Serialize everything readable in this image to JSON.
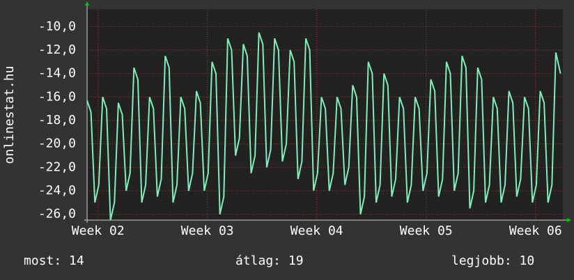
{
  "chart_data": {
    "type": "line",
    "y_label": "onlinestat.hu",
    "x": [
      0,
      0.25,
      0.5,
      0.75,
      1,
      1.25,
      1.5,
      1.75,
      2,
      2.25,
      2.5,
      2.75,
      3,
      3.25,
      3.5,
      3.75,
      4,
      4.25,
      4.5,
      4.75,
      5,
      5.25,
      5.5,
      5.75,
      6,
      6.25,
      6.5,
      6.75,
      7,
      7.25,
      7.5,
      7.75,
      8,
      8.25,
      8.5,
      8.75,
      9,
      9.25,
      9.5,
      9.75,
      10,
      10.25,
      10.5,
      10.75,
      11,
      11.25,
      11.5,
      11.75,
      12,
      12.25,
      12.5,
      12.75,
      13,
      13.25,
      13.5,
      13.75,
      14,
      14.25,
      14.5,
      14.75,
      15,
      15.25,
      15.5,
      15.75,
      16,
      16.25,
      16.5,
      16.75,
      17,
      17.25,
      17.5,
      17.75,
      18,
      18.25,
      18.5,
      18.75,
      19,
      19.25,
      19.5,
      19.75,
      20,
      20.25,
      20.5,
      20.75,
      21,
      21.25,
      21.5,
      21.75,
      22,
      22.25,
      22.5,
      22.75,
      23,
      23.25,
      23.5,
      23.75,
      24,
      24.25,
      24.5,
      24.75,
      25,
      25.25,
      25.5,
      25.75,
      26,
      26.25,
      26.5,
      26.75,
      27,
      27.25,
      27.5,
      27.75,
      28,
      28.25,
      28.5,
      28.75,
      29,
      29.25,
      29.5,
      29.75,
      30,
      30.3
    ],
    "series": [
      {
        "color": "#80eeb8",
        "values": [
          -16.3,
          -17.3,
          -25,
          -23.5,
          -16,
          -17,
          -26.5,
          -25,
          -16.5,
          -17.5,
          -24,
          -22.5,
          -13.5,
          -14.5,
          -25,
          -23.5,
          -16,
          -17,
          -24.5,
          -23,
          -12.5,
          -13.5,
          -25,
          -23.5,
          -16,
          -17,
          -24,
          -22.5,
          -15.5,
          -16.5,
          -24,
          -22.5,
          -13,
          -14,
          -26,
          -24.5,
          -11,
          -12,
          -21,
          -19.5,
          -11.5,
          -12.5,
          -22.5,
          -21,
          -10.5,
          -11.5,
          -22,
          -20.5,
          -11,
          -12,
          -21.5,
          -20,
          -12,
          -13,
          -23,
          -21.5,
          -11,
          -12,
          -24,
          -22.5,
          -16,
          -17,
          -24,
          -22.5,
          -16,
          -17,
          -23.5,
          -22,
          -15,
          -16,
          -26,
          -24.5,
          -13,
          -14,
          -25,
          -23.5,
          -14,
          -15,
          -24.5,
          -23,
          -16,
          -17,
          -25,
          -23.5,
          -16,
          -17,
          -24,
          -22.5,
          -14.5,
          -15.5,
          -24.5,
          -23,
          -13,
          -14,
          -24,
          -22.5,
          -12.5,
          -13.5,
          -25.5,
          -24,
          -13.5,
          -14.5,
          -25,
          -23.5,
          -16,
          -17,
          -25,
          -23.5,
          -15.5,
          -16.5,
          -24.5,
          -23,
          -16,
          -17,
          -25,
          -23.5,
          -15.5,
          -16.5,
          -25,
          -23.5,
          -12.2,
          -14
        ]
      }
    ],
    "xlim": [
      0,
      30.45
    ],
    "xticks": [
      {
        "value": 0.7,
        "label": "Week 02"
      },
      {
        "value": 7.7,
        "label": "Week 03"
      },
      {
        "value": 14.7,
        "label": "Week 04"
      },
      {
        "value": 21.7,
        "label": "Week 05"
      },
      {
        "value": 28.7,
        "label": "Week 06"
      }
    ],
    "ylim": [
      -26.5,
      -8.5
    ],
    "yticks": [
      {
        "value": -26,
        "label": "-26,0"
      },
      {
        "value": -24,
        "label": "-24,0"
      },
      {
        "value": -22,
        "label": "-22,0"
      },
      {
        "value": -20,
        "label": "-20,0"
      },
      {
        "value": -18,
        "label": "-18,0"
      },
      {
        "value": -16,
        "label": "-16,0"
      },
      {
        "value": -14,
        "label": "-14,0"
      },
      {
        "value": -12,
        "label": "-12,0"
      },
      {
        "value": -10,
        "label": "-10,0"
      }
    ],
    "grid": true,
    "footer": [
      "most: 14",
      "átlag: 19",
      "legjobb: 10"
    ]
  }
}
